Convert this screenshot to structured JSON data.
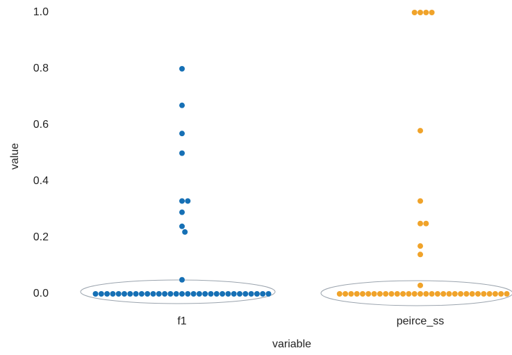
{
  "chart_data": {
    "type": "swarm",
    "x_label": "variable",
    "y_label": "value",
    "categories": [
      "f1",
      "peirce_ss"
    ],
    "colors": [
      "#1670b5",
      "#f0a32a"
    ],
    "values": [
      [
        0.8,
        0.67,
        0.57,
        0.5,
        0.33,
        0.33,
        0.29,
        0.24,
        0.22,
        0.05,
        0,
        0,
        0,
        0,
        0,
        0,
        0,
        0,
        0,
        0,
        0,
        0,
        0,
        0,
        0,
        0,
        0,
        0,
        0,
        0,
        0,
        0,
        0,
        0,
        0,
        0,
        0,
        0,
        0,
        0,
        0
      ],
      [
        1.0,
        1.0,
        1.0,
        1.0,
        0.58,
        0.33,
        0.25,
        0.25,
        0.17,
        0.14,
        0.03,
        0,
        0,
        0,
        0,
        0,
        0,
        0,
        0,
        0,
        0,
        0,
        0,
        0,
        0,
        0,
        0,
        0,
        0,
        0,
        0,
        0,
        0,
        0,
        0,
        0,
        0,
        0,
        0,
        0,
        0
      ]
    ],
    "ylim": [
      0,
      1.0
    ],
    "yticks": [
      {
        "value": 0,
        "label": "0.0"
      },
      {
        "value": 0.2,
        "label": "0.2"
      },
      {
        "value": 0.4,
        "label": "0.4"
      },
      {
        "value": 0.6,
        "label": "0.6"
      },
      {
        "value": 0.8,
        "label": "0.8"
      },
      {
        "value": 1.0,
        "label": "1.0"
      }
    ]
  }
}
